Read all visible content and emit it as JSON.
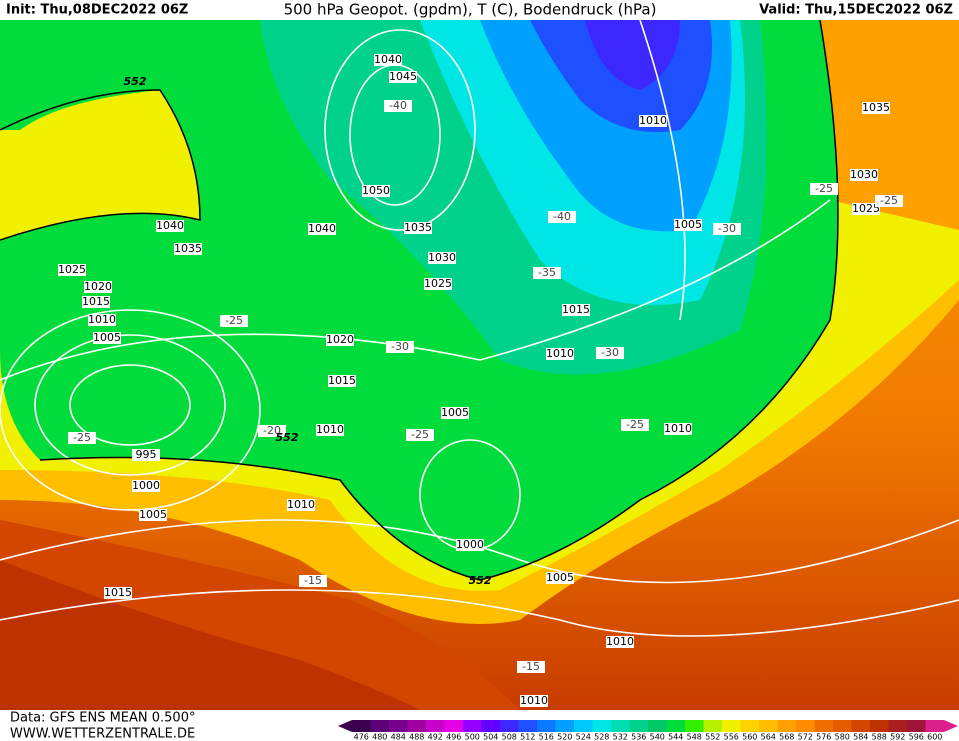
{
  "header": {
    "init": "Init: Thu,08DEC2022 06Z",
    "title": "500 hPa Geopot. (gpdm), T (C), Bodendruck (hPa)",
    "valid": "Valid: Thu,15DEC2022 06Z"
  },
  "footer": {
    "data": "Data: GFS ENS MEAN 0.500°",
    "site": "WWW.WETTERZENTRALE.DE"
  },
  "legend": {
    "labels": [
      476,
      480,
      484,
      488,
      492,
      496,
      500,
      504,
      508,
      512,
      516,
      520,
      524,
      528,
      532,
      536,
      540,
      544,
      548,
      552,
      556,
      560,
      564,
      568,
      572,
      576,
      580,
      584,
      588,
      592,
      596,
      600
    ],
    "colors": [
      "#3c0050",
      "#5a0078",
      "#78008c",
      "#a000a0",
      "#c800c8",
      "#e600e6",
      "#9600ff",
      "#6400ff",
      "#3c28ff",
      "#1e50ff",
      "#0a78ff",
      "#00a0ff",
      "#00c8ff",
      "#00e6e6",
      "#00dcb4",
      "#00d28c",
      "#00c864",
      "#00dc3c",
      "#32f000",
      "#b4f000",
      "#f0f000",
      "#ffd200",
      "#ffbe00",
      "#ffa000",
      "#ff8c00",
      "#f06e00",
      "#e65a00",
      "#d24600",
      "#be3200",
      "#aa1e1e",
      "#a0143c",
      "#dc1e8c"
    ]
  },
  "pressure_labels": [
    "1040",
    "1045",
    "1050",
    "1040",
    "1035",
    "1030",
    "1025",
    "1040",
    "1035",
    "1025",
    "1020",
    "1015",
    "1010",
    "1005",
    "995",
    "1000",
    "1005",
    "1010",
    "1015",
    "1020",
    "1015",
    "1010",
    "1005",
    "1000",
    "1005",
    "1010",
    "1010",
    "1010",
    "1015",
    "1010",
    "1005",
    "1010",
    "1035",
    "1030",
    "1025"
  ],
  "temperature_labels": [
    "-40",
    "-40",
    "-35",
    "-30",
    "-30",
    "-30",
    "-25",
    "-25",
    "-25",
    "-25",
    "-20",
    "-25",
    "-25",
    "-15",
    "-15"
  ],
  "height_labels": [
    "552",
    "552",
    "552"
  ]
}
